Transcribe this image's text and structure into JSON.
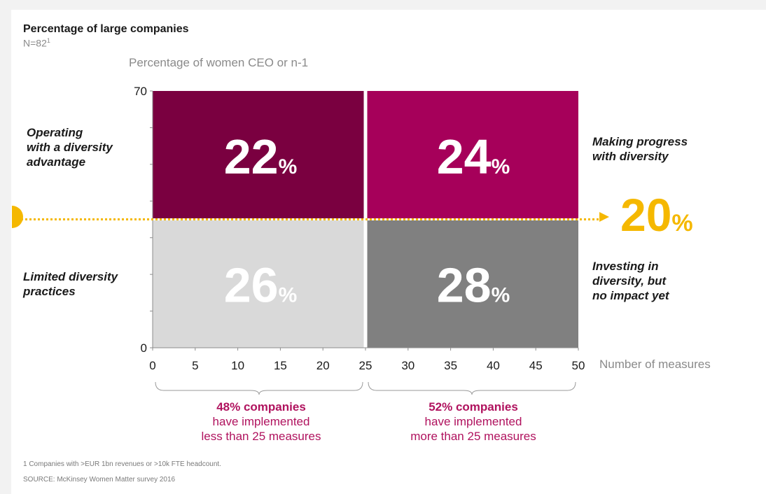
{
  "title": "Percentage of large companies",
  "n_label": "N=82",
  "n_footnote_mark": "1",
  "chart_data": {
    "type": "heatmap",
    "ylabel": "Percentage of women CEO or n-1",
    "xlabel": "Number of measures",
    "xlim": [
      0,
      50
    ],
    "ylim": [
      0,
      70
    ],
    "x_ticks": [
      "0",
      "5",
      "10",
      "15",
      "20",
      "25",
      "30",
      "35",
      "40",
      "45",
      "50"
    ],
    "y_ticks": [
      "0",
      "70"
    ],
    "divider_x": 25,
    "divider_y": 35,
    "quadrants": [
      {
        "position": "top-left",
        "value": "22",
        "unit": "%",
        "label": "Operating\nwith a diversity\nadvantage",
        "color": "#7a0040"
      },
      {
        "position": "top-right",
        "value": "24",
        "unit": "%",
        "label": "Making progress\nwith diversity",
        "color": "#a6005a"
      },
      {
        "position": "bottom-left",
        "value": "26",
        "unit": "%",
        "label": "Limited diversity\npractices",
        "color": "#d9d9d9"
      },
      {
        "position": "bottom-right",
        "value": "28",
        "unit": "%",
        "label": "Investing in\ndiversity, but\nno impact yet",
        "color": "#808080"
      }
    ],
    "average_line": {
      "value": "20",
      "unit": "%",
      "color": "#f5b800"
    }
  },
  "groups": [
    {
      "headline": "48% companies",
      "line1": "have implemented",
      "line2": "less than 25 measures"
    },
    {
      "headline": "52% companies",
      "line1": "have implemented",
      "line2": "more than 25 measures"
    }
  ],
  "footnote": "1 Companies with >EUR 1bn revenues or >10k FTE headcount.",
  "source": "SOURCE: McKinsey Women Matter survey 2016"
}
